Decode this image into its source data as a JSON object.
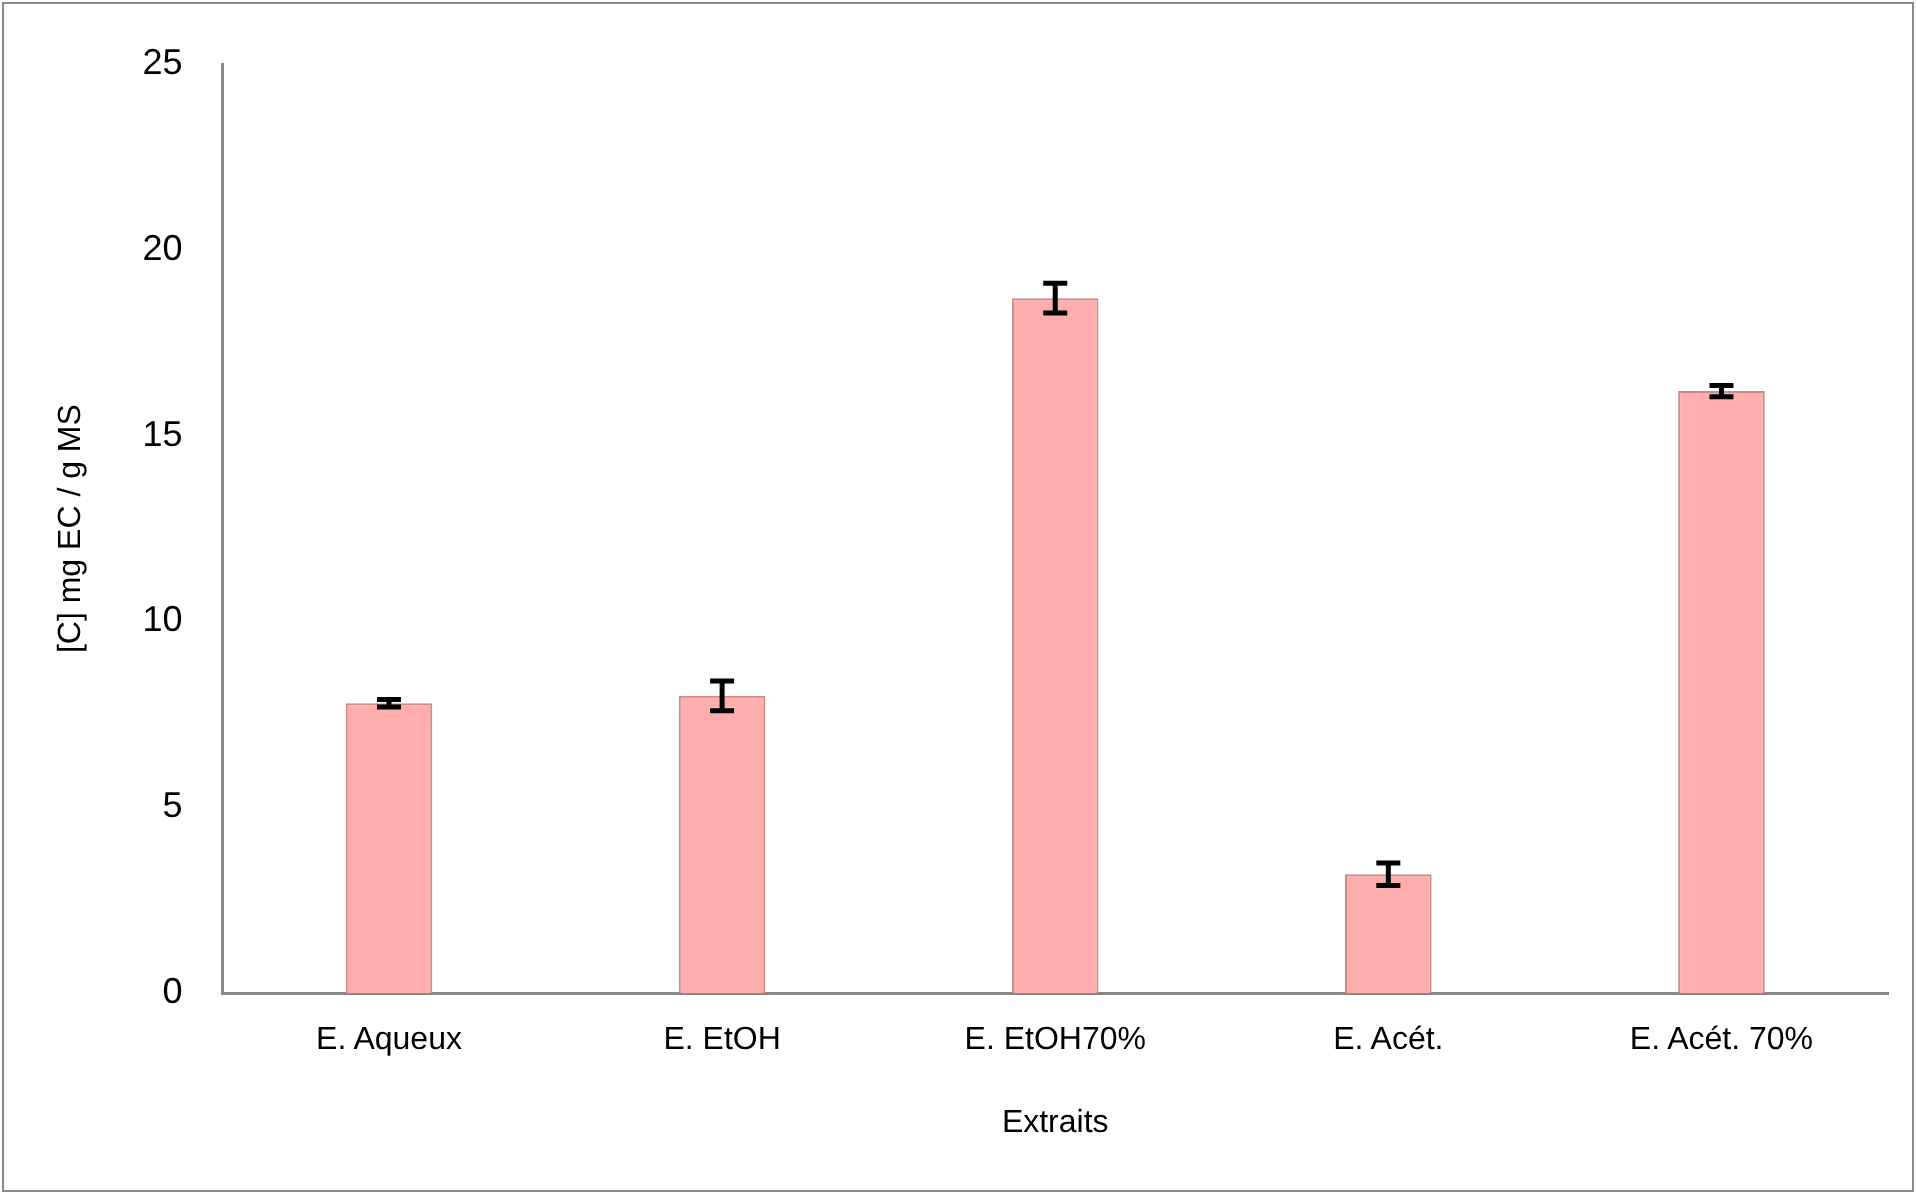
{
  "chart_data": {
    "type": "bar",
    "xlabel": "Extraits",
    "ylabel": "[C] mg EC / g MS",
    "categories": [
      "E. Aqueux",
      "E. EtOH",
      "E. EtOH70%",
      "E. Acét.",
      "E. Acét. 70%"
    ],
    "values": [
      7.8,
      8.0,
      18.7,
      3.2,
      16.2
    ],
    "errors": [
      0.1,
      0.4,
      0.4,
      0.3,
      0.15
    ],
    "color": "#ffadad",
    "ylim": [
      0,
      25
    ],
    "yticks": [
      0,
      5,
      10,
      15,
      20,
      25
    ],
    "grid": false,
    "legend": false
  }
}
